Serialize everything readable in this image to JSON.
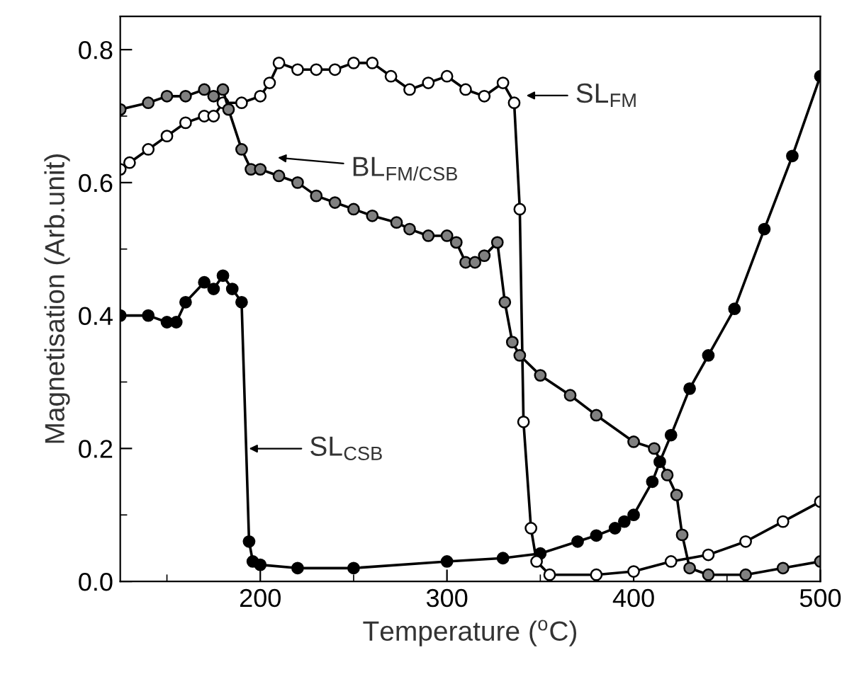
{
  "chart_data": {
    "type": "line",
    "xlabel": "Temperature ($^{o}$C)",
    "ylabel": "Magnetisation (Arb.unit)",
    "xlim": [
      125,
      500
    ],
    "ylim": [
      0,
      0.85
    ],
    "xticks": [
      {
        "value": 150,
        "label": null
      },
      200,
      {
        "value": 250,
        "label": null
      },
      300,
      {
        "value": 350,
        "label": null
      },
      400,
      {
        "value": 450,
        "label": null
      },
      500
    ],
    "yticks": [
      {
        "value": 0,
        "label": "0.0"
      },
      {
        "value": 0.1,
        "label": null
      },
      0.2,
      {
        "value": 0.3,
        "label": null
      },
      0.4,
      {
        "value": 0.5,
        "label": null
      },
      0.6,
      {
        "value": 0.7,
        "label": null
      },
      0.8
    ],
    "marker": "circle",
    "line_style": "solid",
    "grid": false,
    "series": [
      {
        "color": "#000000",
        "x": [
          125,
          140,
          150,
          155,
          160,
          170,
          175,
          180,
          185,
          190,
          194,
          196,
          200,
          220,
          250,
          300,
          330,
          350,
          370,
          380,
          390,
          395,
          400,
          410,
          414,
          420,
          430,
          440,
          454,
          470,
          485,
          500
        ],
        "values": [
          0.4,
          0.4,
          0.39,
          0.39,
          0.42,
          0.45,
          0.44,
          0.46,
          0.44,
          0.42,
          0.06,
          0.03,
          0.025,
          0.02,
          0.02,
          0.03,
          0.035,
          0.042,
          0.06,
          0.069,
          0.08,
          0.09,
          0.1,
          0.15,
          0.18,
          0.22,
          0.29,
          0.34,
          0.41,
          0.53,
          0.64,
          0.76
        ]
      },
      {
        "color": "#ffffff",
        "x": [
          125,
          130,
          140,
          150,
          160,
          170,
          175,
          180,
          190,
          200,
          205,
          210,
          220,
          230,
          240,
          250,
          260,
          270,
          280,
          290,
          300,
          310,
          320,
          330,
          336,
          339,
          341,
          345,
          348,
          355,
          380,
          400,
          420,
          440,
          460,
          480,
          500
        ],
        "values": [
          0.62,
          0.63,
          0.65,
          0.67,
          0.69,
          0.7,
          0.7,
          0.72,
          0.72,
          0.73,
          0.75,
          0.78,
          0.77,
          0.77,
          0.77,
          0.78,
          0.78,
          0.76,
          0.74,
          0.75,
          0.76,
          0.74,
          0.73,
          0.75,
          0.72,
          0.56,
          0.24,
          0.08,
          0.03,
          0.01,
          0.01,
          0.015,
          0.03,
          0.04,
          0.06,
          0.09,
          0.12
        ]
      },
      {
        "color": "#808080",
        "x": [
          125,
          140,
          150,
          160,
          170,
          175,
          180,
          183,
          190,
          195,
          200,
          210,
          220,
          230,
          240,
          250,
          260,
          273,
          280,
          290,
          300,
          305,
          310,
          315,
          320,
          327,
          331,
          335,
          339,
          350,
          366,
          380,
          400,
          411,
          418,
          423,
          426,
          430,
          440,
          460,
          480,
          500
        ],
        "values": [
          0.71,
          0.72,
          0.73,
          0.73,
          0.74,
          0.73,
          0.74,
          0.71,
          0.65,
          0.62,
          0.62,
          0.61,
          0.6,
          0.58,
          0.57,
          0.56,
          0.55,
          0.54,
          0.53,
          0.52,
          0.52,
          0.51,
          0.48,
          0.48,
          0.49,
          0.51,
          0.42,
          0.36,
          0.34,
          0.31,
          0.28,
          0.25,
          0.21,
          0.2,
          0.16,
          0.13,
          0.07,
          0.02,
          0.01,
          0.01,
          0.02,
          0.03
        ]
      }
    ],
    "annotations": [
      "SL$_{CSB}$",
      "SL$_{FM}$",
      "BL$_{FM/CSB}$"
    ]
  }
}
